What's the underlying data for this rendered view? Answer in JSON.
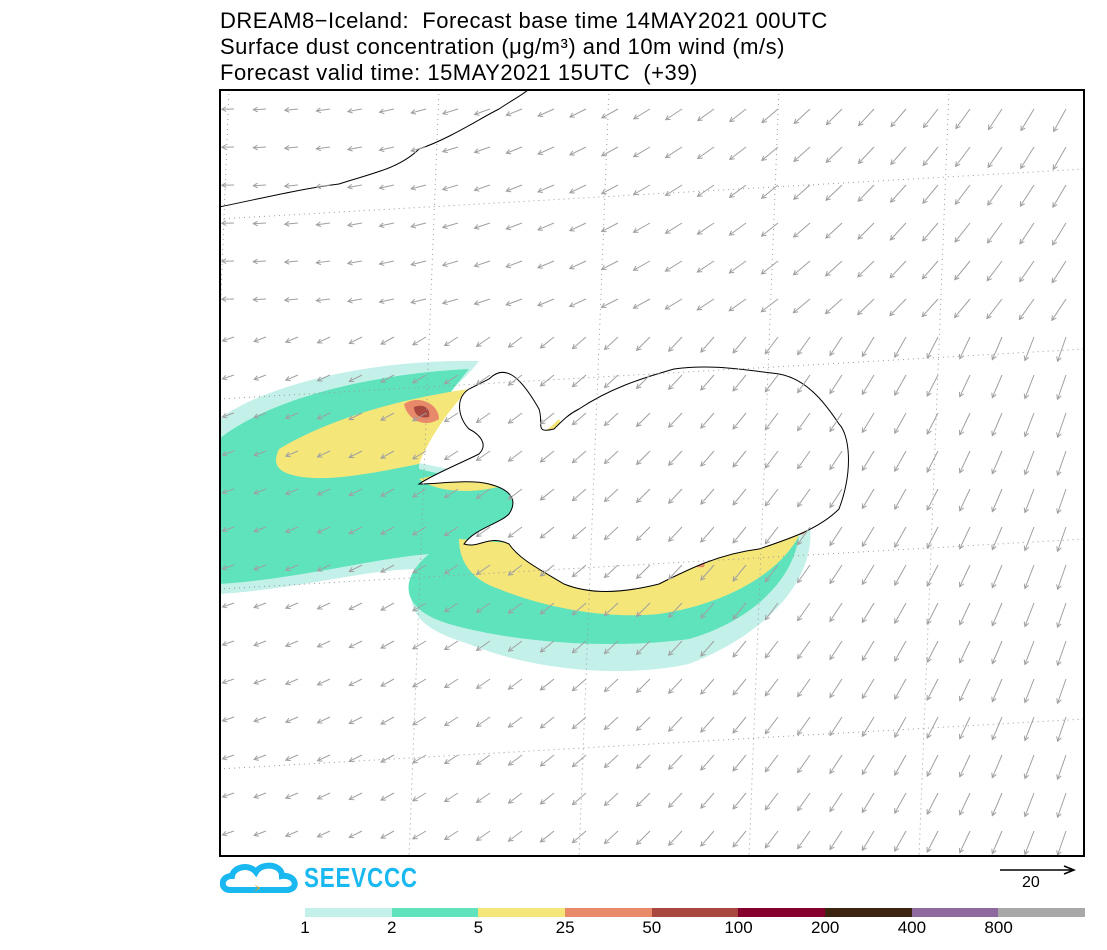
{
  "title": {
    "line1": "DREAM8−Iceland:  Forecast base time 14MAY2021 00UTC",
    "line2": "Surface dust concentration (μg/m³) and 10m wind (m/s)",
    "line3": "Forecast valid time: 15MAY2021 15UTC  (+39)"
  },
  "logo": {
    "text": "SEEVCCC",
    "icon": "cloud-icon"
  },
  "wind_reference": {
    "label": "20",
    "units": "m/s"
  },
  "colorbar": {
    "labels": [
      "1",
      "2",
      "5",
      "25",
      "50",
      "100",
      "200",
      "400",
      "800"
    ],
    "colors": [
      "#c4f0ea",
      "#5ee3bd",
      "#f5e67a",
      "#e8896a",
      "#a8473e",
      "#85002e",
      "#3d2410",
      "#8e6a9e",
      "#a8a8a8"
    ]
  }
}
